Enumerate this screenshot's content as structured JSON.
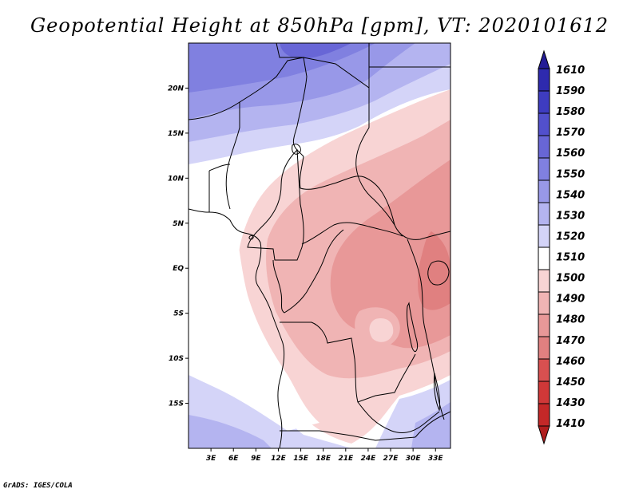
{
  "title": "Geopotential Height at 850hPa [gpm], VT: 2020101612",
  "credit": "GrADS: IGES/COLA",
  "map": {
    "lon_range": [
      0,
      35
    ],
    "lat_range": [
      -20,
      25
    ],
    "lat_ticks": [
      {
        "value": 20,
        "label": "20N"
      },
      {
        "value": 15,
        "label": "15N"
      },
      {
        "value": 10,
        "label": "10N"
      },
      {
        "value": 5,
        "label": "5N"
      },
      {
        "value": 0,
        "label": "EQ"
      },
      {
        "value": -5,
        "label": "5S"
      },
      {
        "value": -10,
        "label": "10S"
      },
      {
        "value": -15,
        "label": "15S"
      }
    ],
    "lon_ticks": [
      {
        "value": 3,
        "label": "3E"
      },
      {
        "value": 6,
        "label": "6E"
      },
      {
        "value": 9,
        "label": "9E"
      },
      {
        "value": 12,
        "label": "12E"
      },
      {
        "value": 15,
        "label": "15E"
      },
      {
        "value": 18,
        "label": "18E"
      },
      {
        "value": 21,
        "label": "21E"
      },
      {
        "value": 24,
        "label": "24E"
      },
      {
        "value": 27,
        "label": "27E"
      },
      {
        "value": 30,
        "label": "30E"
      },
      {
        "value": 33,
        "label": "33E"
      }
    ]
  },
  "colorbar": {
    "labels": [
      "1610",
      "1590",
      "1580",
      "1570",
      "1560",
      "1550",
      "1540",
      "1530",
      "1520",
      "1510",
      "1500",
      "1490",
      "1480",
      "1470",
      "1460",
      "1450",
      "1430",
      "1410"
    ],
    "colors": [
      "#241c96",
      "#2e2aae",
      "#3e3cc0",
      "#5250cc",
      "#6866d6",
      "#8080e0",
      "#9898e8",
      "#b4b4f0",
      "#d4d4f8",
      "#ffffff",
      "#f8d4d4",
      "#f0b4b4",
      "#e89898",
      "#e08080",
      "#d85050",
      "#d03838",
      "#c42828",
      "#b01e1e"
    ]
  }
}
